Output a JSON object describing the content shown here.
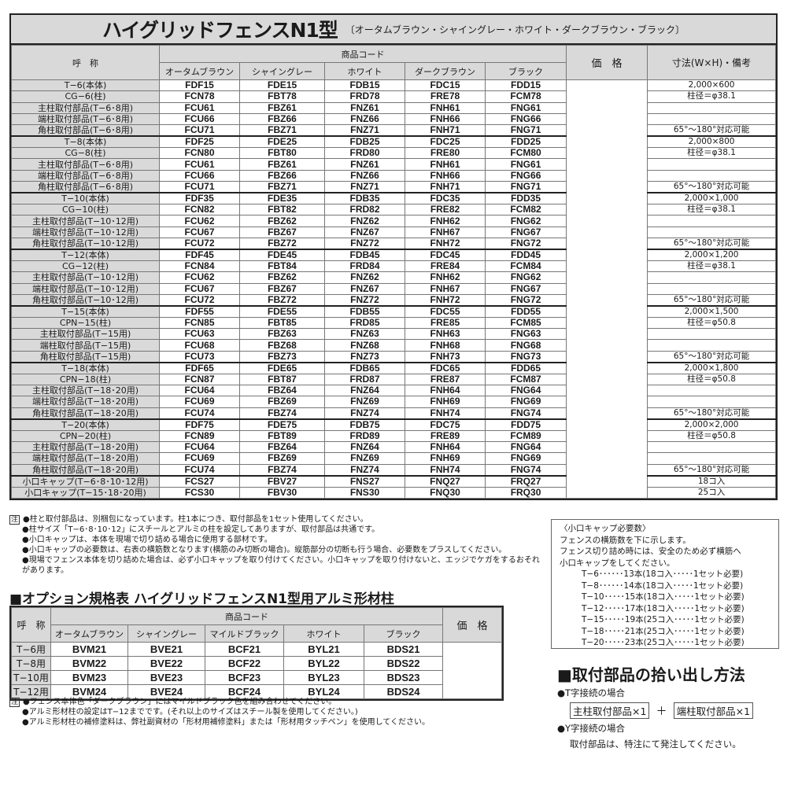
{
  "main": {
    "title": "ハイグリッドフェンスN1型",
    "subtitle": "〔オータムブラウン・シャイングレー・ホワイト・ダークブラウン・ブラック〕",
    "headers": {
      "name": "呼　称",
      "code": "商品コード",
      "price": "価　格",
      "note": "寸法(W×H)・備考",
      "colors": [
        "オータムブラウン",
        "シャイングレー",
        "ホワイト",
        "ダークブラウン",
        "ブラック"
      ]
    },
    "rows": [
      {
        "name": "T−6(本体)",
        "codes": [
          "FDF15",
          "FDE15",
          "FDB15",
          "FDC15",
          "FDD15"
        ],
        "note": "2,000×600"
      },
      {
        "name": "CG−6(柱)",
        "codes": [
          "FCN78",
          "FBT78",
          "FRD78",
          "FRE78",
          "FCM78"
        ],
        "note": "柱径＝φ38.1"
      },
      {
        "name": "主柱取付部品(T−6･8用)",
        "codes": [
          "FCU61",
          "FBZ61",
          "FNZ61",
          "FNH61",
          "FNG61"
        ],
        "note": ""
      },
      {
        "name": "端柱取付部品(T−6･8用)",
        "codes": [
          "FCU66",
          "FBZ66",
          "FNZ66",
          "FNH66",
          "FNG66"
        ],
        "note": ""
      },
      {
        "name": "角柱取付部品(T−6･8用)",
        "codes": [
          "FCU71",
          "FBZ71",
          "FNZ71",
          "FNH71",
          "FNG71"
        ],
        "note": "65°～180°対応可能"
      },
      {
        "name": "T−8(本体)",
        "codes": [
          "FDF25",
          "FDE25",
          "FDB25",
          "FDC25",
          "FDD25"
        ],
        "note": "2,000×800"
      },
      {
        "name": "CG−8(柱)",
        "codes": [
          "FCN80",
          "FBT80",
          "FRD80",
          "FRE80",
          "FCM80"
        ],
        "note": "柱径＝φ38.1"
      },
      {
        "name": "主柱取付部品(T−6･8用)",
        "codes": [
          "FCU61",
          "FBZ61",
          "FNZ61",
          "FNH61",
          "FNG61"
        ],
        "note": ""
      },
      {
        "name": "端柱取付部品(T−6･8用)",
        "codes": [
          "FCU66",
          "FBZ66",
          "FNZ66",
          "FNH66",
          "FNG66"
        ],
        "note": ""
      },
      {
        "name": "角柱取付部品(T−6･8用)",
        "codes": [
          "FCU71",
          "FBZ71",
          "FNZ71",
          "FNH71",
          "FNG71"
        ],
        "note": "65°～180°対応可能"
      },
      {
        "name": "T−10(本体)",
        "codes": [
          "FDF35",
          "FDE35",
          "FDB35",
          "FDC35",
          "FDD35"
        ],
        "note": "2,000×1,000"
      },
      {
        "name": "CG−10(柱)",
        "codes": [
          "FCN82",
          "FBT82",
          "FRD82",
          "FRE82",
          "FCM82"
        ],
        "note": "柱径＝φ38.1"
      },
      {
        "name": "主柱取付部品(T−10･12用)",
        "codes": [
          "FCU62",
          "FBZ62",
          "FNZ62",
          "FNH62",
          "FNG62"
        ],
        "note": ""
      },
      {
        "name": "端柱取付部品(T−10･12用)",
        "codes": [
          "FCU67",
          "FBZ67",
          "FNZ67",
          "FNH67",
          "FNG67"
        ],
        "note": ""
      },
      {
        "name": "角柱取付部品(T−10･12用)",
        "codes": [
          "FCU72",
          "FBZ72",
          "FNZ72",
          "FNH72",
          "FNG72"
        ],
        "note": "65°～180°対応可能"
      },
      {
        "name": "T−12(本体)",
        "codes": [
          "FDF45",
          "FDE45",
          "FDB45",
          "FDC45",
          "FDD45"
        ],
        "note": "2,000×1,200"
      },
      {
        "name": "CG−12(柱)",
        "codes": [
          "FCN84",
          "FBT84",
          "FRD84",
          "FRE84",
          "FCM84"
        ],
        "note": "柱径＝φ38.1"
      },
      {
        "name": "主柱取付部品(T−10･12用)",
        "codes": [
          "FCU62",
          "FBZ62",
          "FNZ62",
          "FNH62",
          "FNG62"
        ],
        "note": ""
      },
      {
        "name": "端柱取付部品(T−10･12用)",
        "codes": [
          "FCU67",
          "FBZ67",
          "FNZ67",
          "FNH67",
          "FNG67"
        ],
        "note": ""
      },
      {
        "name": "角柱取付部品(T−10･12用)",
        "codes": [
          "FCU72",
          "FBZ72",
          "FNZ72",
          "FNH72",
          "FNG72"
        ],
        "note": "65°～180°対応可能"
      },
      {
        "name": "T−15(本体)",
        "codes": [
          "FDF55",
          "FDE55",
          "FDB55",
          "FDC55",
          "FDD55"
        ],
        "note": "2,000×1,500"
      },
      {
        "name": "CPN−15(柱)",
        "codes": [
          "FCN85",
          "FBT85",
          "FRD85",
          "FRE85",
          "FCM85"
        ],
        "note": "柱径＝φ50.8"
      },
      {
        "name": "主柱取付部品(T−15用)",
        "codes": [
          "FCU63",
          "FBZ63",
          "FNZ63",
          "FNH63",
          "FNG63"
        ],
        "note": ""
      },
      {
        "name": "端柱取付部品(T−15用)",
        "codes": [
          "FCU68",
          "FBZ68",
          "FNZ68",
          "FNH68",
          "FNG68"
        ],
        "note": ""
      },
      {
        "name": "角柱取付部品(T−15用)",
        "codes": [
          "FCU73",
          "FBZ73",
          "FNZ73",
          "FNH73",
          "FNG73"
        ],
        "note": "65°～180°対応可能"
      },
      {
        "name": "T−18(本体)",
        "codes": [
          "FDF65",
          "FDE65",
          "FDB65",
          "FDC65",
          "FDD65"
        ],
        "note": "2,000×1,800"
      },
      {
        "name": "CPN−18(柱)",
        "codes": [
          "FCN87",
          "FBT87",
          "FRD87",
          "FRE87",
          "FCM87"
        ],
        "note": "柱径＝φ50.8"
      },
      {
        "name": "主柱取付部品(T−18･20用)",
        "codes": [
          "FCU64",
          "FBZ64",
          "FNZ64",
          "FNH64",
          "FNG64"
        ],
        "note": ""
      },
      {
        "name": "端柱取付部品(T−18･20用)",
        "codes": [
          "FCU69",
          "FBZ69",
          "FNZ69",
          "FNH69",
          "FNG69"
        ],
        "note": ""
      },
      {
        "name": "角柱取付部品(T−18･20用)",
        "codes": [
          "FCU74",
          "FBZ74",
          "FNZ74",
          "FNH74",
          "FNG74"
        ],
        "note": "65°～180°対応可能"
      },
      {
        "name": "T−20(本体)",
        "codes": [
          "FDF75",
          "FDE75",
          "FDB75",
          "FDC75",
          "FDD75"
        ],
        "note": "2,000×2,000"
      },
      {
        "name": "CPN−20(柱)",
        "codes": [
          "FCN89",
          "FBT89",
          "FRD89",
          "FRE89",
          "FCM89"
        ],
        "note": "柱径＝φ50.8"
      },
      {
        "name": "主柱取付部品(T−18･20用)",
        "codes": [
          "FCU64",
          "FBZ64",
          "FNZ64",
          "FNH64",
          "FNG64"
        ],
        "note": ""
      },
      {
        "name": "端柱取付部品(T−18･20用)",
        "codes": [
          "FCU69",
          "FBZ69",
          "FNZ69",
          "FNH69",
          "FNG69"
        ],
        "note": ""
      },
      {
        "name": "角柱取付部品(T−18･20用)",
        "codes": [
          "FCU74",
          "FBZ74",
          "FNZ74",
          "FNH74",
          "FNG74"
        ],
        "note": "65°～180°対応可能"
      },
      {
        "name": "小口キャップ(T−6･8･10･12用)",
        "codes": [
          "FCS27",
          "FBV27",
          "FNS27",
          "FNQ27",
          "FRQ27"
        ],
        "note": "18コ入"
      },
      {
        "name": "小口キャップ(T−15･18･20用)",
        "codes": [
          "FCS30",
          "FBV30",
          "FNS30",
          "FNQ30",
          "FRQ30"
        ],
        "note": "25コ入"
      }
    ],
    "notes_mark": "注",
    "notes": [
      "●柱と取付部品は、別梱包になっています。柱1本につき、取付部品を1セット使用してください。",
      "●柱サイズ「T−6･8･10･12」にスチールとアルミの柱を設定してありますが、取付部品は共通です。",
      "●小口キャップは、本体を現場で切り詰める場合に使用する部材です。",
      "●小口キャップの必要数は、右表の横筋数となります(横筋のみ切断の場合)。縦筋部分の切断も行う場合、必要数をプラスしてください。",
      "●現場でフェンス本体を切り詰めた場合は、必ず小口キャップを取り付けてください。小口キャップを取り付けないと、エッジでケガをするおそれがあります。"
    ]
  },
  "cap_box": {
    "lines": [
      "〈小口キャップ必要数〉",
      "フェンスの横筋数を下に示します。",
      "フェンス切り詰め時には、安全のため必ず横筋へ",
      "小口キャップをしてください。"
    ],
    "rows": [
      "T−6･･････13本(18コ入･････1セット必要)",
      "T−8･･････14本(18コ入･････1セット必要)",
      "T−10･････15本(18コ入･････1セット必要)",
      "T−12･････17本(18コ入･････1セット必要)",
      "T−15･････19本(25コ入･････1セット必要)",
      "T−18･････21本(25コ入･････1セット必要)",
      "T−20･････23本(25コ入･････1セット必要)"
    ]
  },
  "option": {
    "heading": "■オプション規格表 ハイグリッドフェンスN1型用アルミ形材柱",
    "headers": {
      "name": "呼　称",
      "code": "商品コード",
      "price": "価　格",
      "colors": [
        "オータムブラウン",
        "シャイングレー",
        "マイルドブラック",
        "ホワイト",
        "ブラック"
      ]
    },
    "rows": [
      {
        "name": "T−6用",
        "codes": [
          "BVM21",
          "BVE21",
          "BCF21",
          "BYL21",
          "BDS21"
        ]
      },
      {
        "name": "T−8用",
        "codes": [
          "BVM22",
          "BVE22",
          "BCF22",
          "BYL22",
          "BDS22"
        ]
      },
      {
        "name": "T−10用",
        "codes": [
          "BVM23",
          "BVE23",
          "BCF23",
          "BYL23",
          "BDS23"
        ]
      },
      {
        "name": "T−12用",
        "codes": [
          "BVM24",
          "BVE24",
          "BCF24",
          "BYL24",
          "BDS24"
        ]
      }
    ],
    "notes_mark": "注",
    "notes": [
      "●フェンス本体色「ダークブラウン」にはマイルドブラック色を組み合わせてください。",
      "●アルミ形材柱の設定はT−12までです。(それ以上のサイズはスチール製を使用してください。)",
      "●アルミ形材柱の補修塗料は、弊社副資材の「形材用補修塗料」または「形材用タッチペン」を使用してください。"
    ]
  },
  "howto": {
    "heading": "■取付部品の拾い出し方法",
    "t_label": "●T字接続の場合",
    "t_box1": "主柱取付部品×1",
    "plus": "＋",
    "t_box2": "端柱取付部品×1",
    "y_label": "●Y字接続の場合",
    "y_text": "取付部品は、特注にて発注してください。"
  }
}
